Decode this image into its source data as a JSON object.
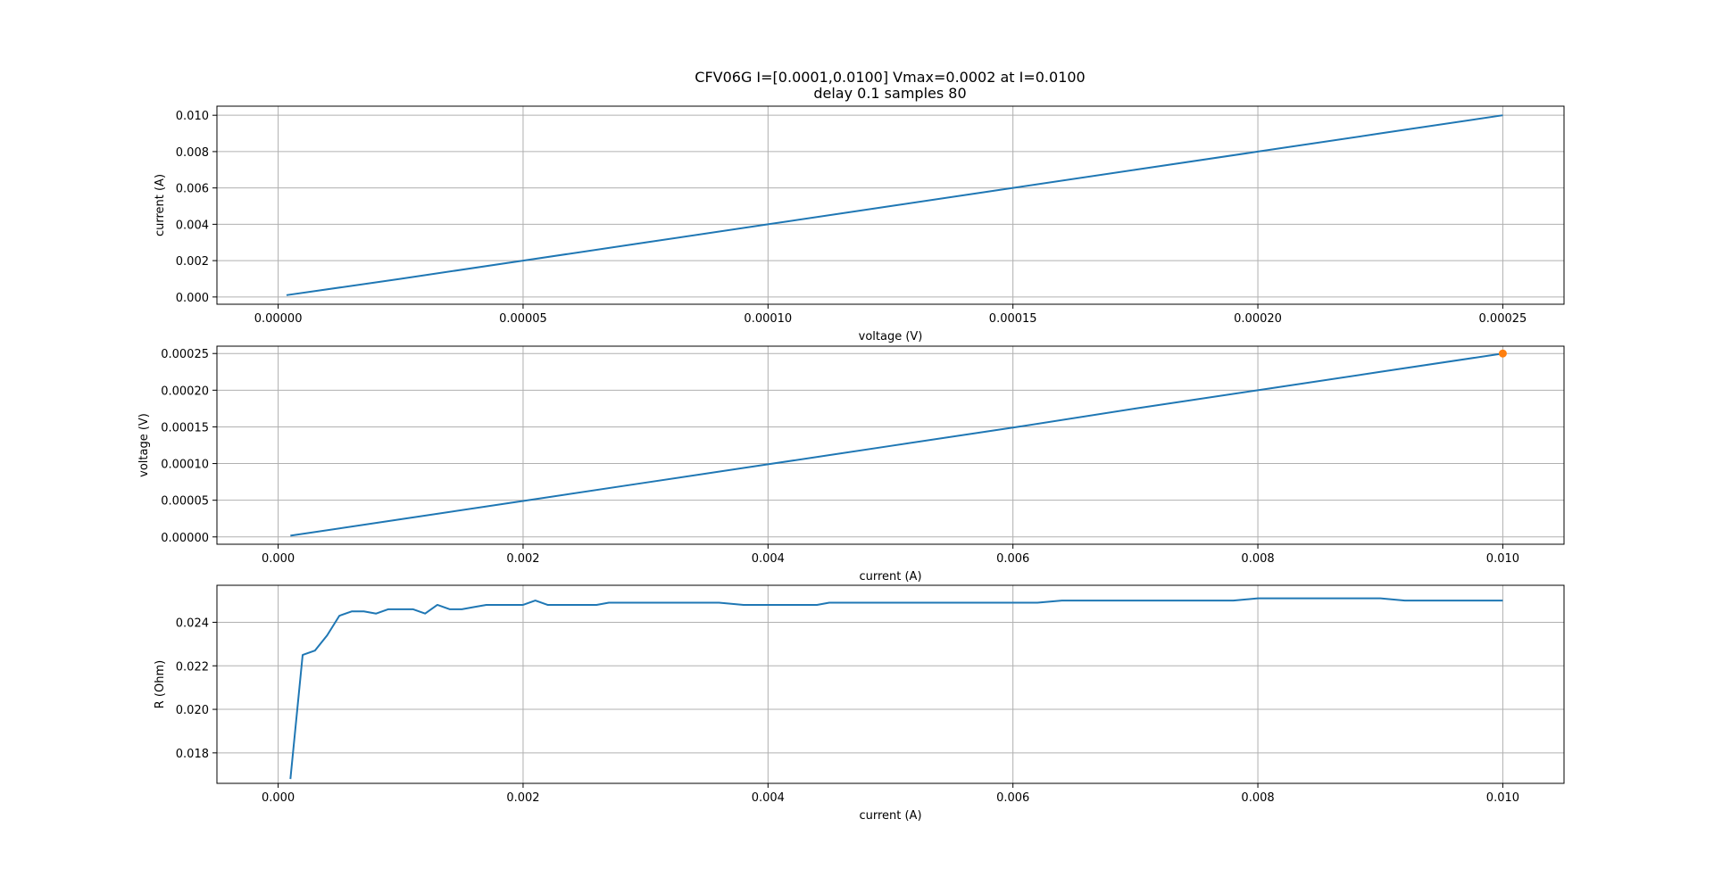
{
  "figure": {
    "title_line1": "CFV06G I=[0.0001,0.0100] Vmax=0.0002 at I=0.0100",
    "title_line2": "delay 0.1 samples 80"
  },
  "colors": {
    "series": "#1f77b4",
    "marker": "#ff7f0e",
    "grid": "#b0b0b0"
  },
  "chart_data": [
    {
      "type": "line",
      "xlabel": "voltage (V)",
      "ylabel": "current (A)",
      "xlim": [
        -1.25e-05,
        0.0002625
      ],
      "ylim": [
        -0.0004,
        0.0105
      ],
      "xticks": [
        0.0,
        5e-05,
        0.0001,
        0.00015,
        0.0002,
        0.00025
      ],
      "xtick_labels": [
        "0.00000",
        "0.00005",
        "0.00010",
        "0.00015",
        "0.00020",
        "0.00025"
      ],
      "yticks": [
        0.0,
        0.002,
        0.004,
        0.006,
        0.008,
        0.01
      ],
      "ytick_labels": [
        "0.000",
        "0.002",
        "0.004",
        "0.006",
        "0.008",
        "0.010"
      ],
      "grid": true,
      "series": [
        {
          "x": [
            1.7e-06,
            2.5e-05,
            5e-05,
            7.5e-05,
            0.0001,
            0.000125,
            0.00015,
            0.000175,
            0.0002,
            0.000225,
            0.00025
          ],
          "y": [
            0.0001,
            0.001,
            0.002,
            0.003,
            0.004,
            0.005,
            0.006,
            0.007,
            0.008,
            0.009,
            0.01
          ]
        }
      ]
    },
    {
      "type": "line",
      "xlabel": "current (A)",
      "ylabel": "voltage (V)",
      "xlim": [
        -0.0005,
        0.0105
      ],
      "ylim": [
        -1e-05,
        0.00026
      ],
      "xticks": [
        0.0,
        0.002,
        0.004,
        0.006,
        0.008,
        0.01
      ],
      "xtick_labels": [
        "0.000",
        "0.002",
        "0.004",
        "0.006",
        "0.008",
        "0.010"
      ],
      "yticks": [
        0.0,
        5e-05,
        0.0001,
        0.00015,
        0.0002,
        0.00025
      ],
      "ytick_labels": [
        "0.00000",
        "0.00005",
        "0.00010",
        "0.00015",
        "0.00020",
        "0.00025"
      ],
      "grid": true,
      "series": [
        {
          "x": [
            0.0001,
            0.001,
            0.002,
            0.003,
            0.004,
            0.005,
            0.006,
            0.007,
            0.008,
            0.009,
            0.01
          ],
          "y": [
            1.7e-06,
            2.4e-05,
            4.9e-05,
            7.4e-05,
            9.9e-05,
            0.000124,
            0.000149,
            0.000175,
            0.0002,
            0.000225,
            0.00025
          ]
        }
      ],
      "markers": [
        {
          "x": 0.01,
          "y": 0.00025
        }
      ]
    },
    {
      "type": "line",
      "xlabel": "current (A)",
      "ylabel": "R (Ohm)",
      "xlim": [
        -0.0005,
        0.0105
      ],
      "ylim": [
        0.0166,
        0.0257
      ],
      "xticks": [
        0.0,
        0.002,
        0.004,
        0.006,
        0.008,
        0.01
      ],
      "xtick_labels": [
        "0.000",
        "0.002",
        "0.004",
        "0.006",
        "0.008",
        "0.010"
      ],
      "yticks": [
        0.018,
        0.02,
        0.022,
        0.024
      ],
      "ytick_labels": [
        "0.018",
        "0.020",
        "0.022",
        "0.024"
      ],
      "grid": true,
      "series": [
        {
          "x": [
            0.0001,
            0.0002,
            0.0003,
            0.0004,
            0.0005,
            0.0006,
            0.0007,
            0.0008,
            0.0009,
            0.001,
            0.0011,
            0.0012,
            0.0013,
            0.0014,
            0.0015,
            0.0016,
            0.0017,
            0.0018,
            0.0019,
            0.002,
            0.0021,
            0.0022,
            0.0023,
            0.0024,
            0.0025,
            0.0026,
            0.0027,
            0.0028,
            0.003,
            0.0032,
            0.0034,
            0.0036,
            0.0038,
            0.004,
            0.0042,
            0.0044,
            0.0045,
            0.0046,
            0.0048,
            0.005,
            0.0052,
            0.0054,
            0.0056,
            0.0058,
            0.006,
            0.0062,
            0.0064,
            0.0066,
            0.0068,
            0.007,
            0.0072,
            0.0074,
            0.0076,
            0.0078,
            0.008,
            0.0082,
            0.0084,
            0.0086,
            0.0088,
            0.009,
            0.0092,
            0.0094,
            0.0096,
            0.0098,
            0.01
          ],
          "y": [
            0.0168,
            0.0225,
            0.0227,
            0.0234,
            0.0243,
            0.0245,
            0.0245,
            0.0244,
            0.0246,
            0.0246,
            0.0246,
            0.0244,
            0.0248,
            0.0246,
            0.0246,
            0.0247,
            0.0248,
            0.0248,
            0.0248,
            0.0248,
            0.025,
            0.0248,
            0.0248,
            0.0248,
            0.0248,
            0.0248,
            0.0249,
            0.0249,
            0.0249,
            0.0249,
            0.0249,
            0.0249,
            0.0248,
            0.0248,
            0.0248,
            0.0248,
            0.0249,
            0.0249,
            0.0249,
            0.0249,
            0.0249,
            0.0249,
            0.0249,
            0.0249,
            0.0249,
            0.0249,
            0.025,
            0.025,
            0.025,
            0.025,
            0.025,
            0.025,
            0.025,
            0.025,
            0.0251,
            0.0251,
            0.0251,
            0.0251,
            0.0251,
            0.0251,
            0.025,
            0.025,
            0.025,
            0.025,
            0.025
          ]
        }
      ]
    }
  ]
}
